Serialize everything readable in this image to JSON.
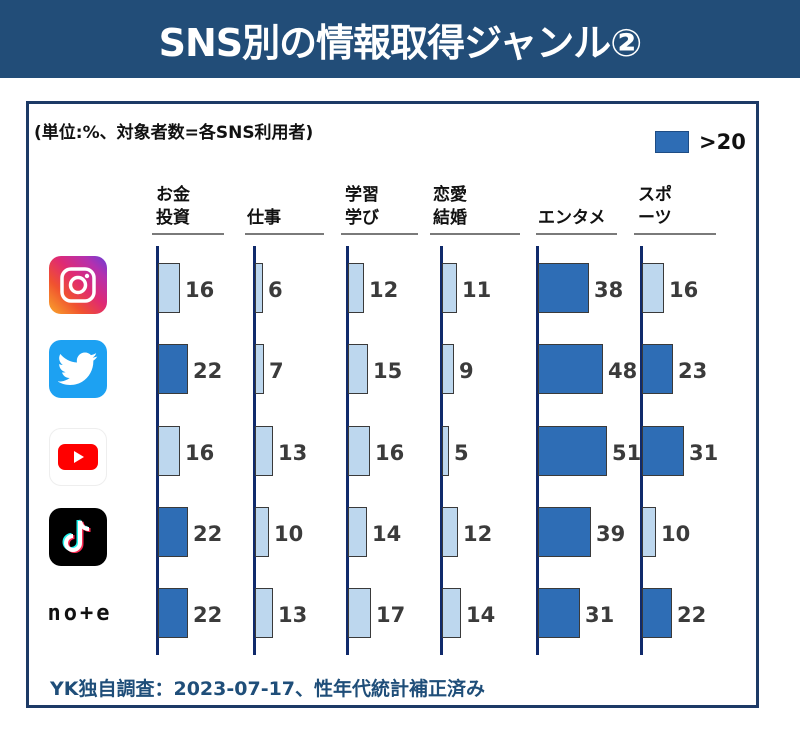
{
  "header": {
    "title": "SNS別の情報取得ジャンル②"
  },
  "unit_note": "(単位:%、対象者数=各SNS利用者)",
  "legend": {
    "label": ">20",
    "color": "#2e6db5"
  },
  "footer": "YK独自調査：2023-07-17、性年代統計補正済み",
  "colors": {
    "above_20": "#2e6db5",
    "at_or_below_20": "#bdd7ee",
    "header_bg": "#224d78",
    "frame": "#1d3a66",
    "axis": "#102a6b"
  },
  "columns": [
    {
      "label": "お金\n投資"
    },
    {
      "label": "仕事"
    },
    {
      "label": "学習\n学び"
    },
    {
      "label": "恋愛\n結婚"
    },
    {
      "label": "エンタメ"
    },
    {
      "label": "スポ\nーツ"
    }
  ],
  "rows": [
    {
      "sns": "Instagram",
      "icon": "instagram-icon"
    },
    {
      "sns": "Twitter",
      "icon": "twitter-icon"
    },
    {
      "sns": "YouTube",
      "icon": "youtube-icon"
    },
    {
      "sns": "TikTok",
      "icon": "tiktok-icon"
    },
    {
      "sns": "note",
      "icon": "note-logo",
      "logo_text": "no+e"
    }
  ],
  "chart_data": {
    "type": "bar",
    "orientation": "horizontal",
    "title": "SNS別の情報取得ジャンル②",
    "subtitle": "(単位:%、対象者数=各SNS利用者)",
    "categories": [
      "Instagram",
      "Twitter",
      "YouTube",
      "TikTok",
      "note"
    ],
    "series": [
      {
        "name": "お金投資",
        "values": [
          16,
          22,
          16,
          22,
          22
        ]
      },
      {
        "name": "仕事",
        "values": [
          6,
          7,
          13,
          10,
          13
        ]
      },
      {
        "name": "学習学び",
        "values": [
          12,
          15,
          16,
          14,
          17
        ]
      },
      {
        "name": "恋愛結婚",
        "values": [
          11,
          9,
          5,
          12,
          14
        ]
      },
      {
        "name": "エンタメ",
        "values": [
          38,
          48,
          51,
          39,
          31
        ]
      },
      {
        "name": "スポーツ",
        "values": [
          16,
          23,
          31,
          10,
          22
        ]
      }
    ],
    "legend": [
      ">20"
    ],
    "highlight_threshold": 20,
    "xlabel": "",
    "ylabel": "",
    "grid": false,
    "source": "YK独自調査：2023-07-17、性年代統計補正済み"
  }
}
